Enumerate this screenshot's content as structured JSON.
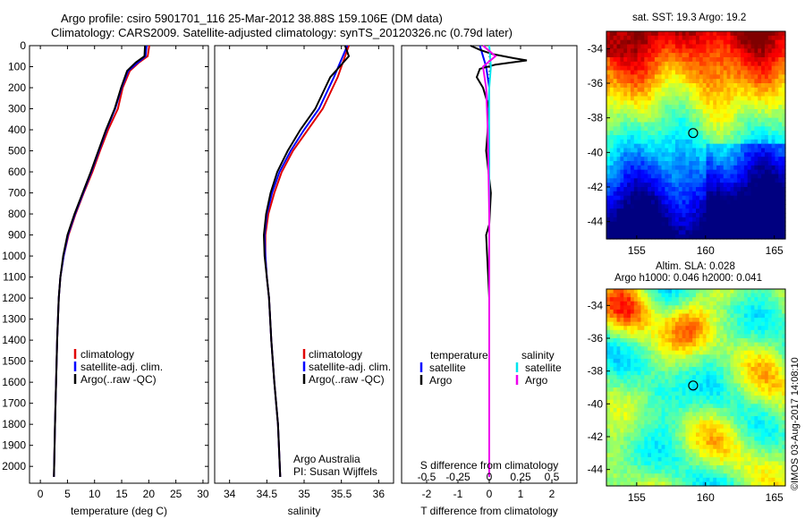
{
  "header": {
    "line1": "Argo profile: csiro 5901701_116 25-Mar-2012 38.88S 159.106E (DM data)",
    "line2": "Climatology: CARS2009. Satellite-adjusted climatology: synTS_20120326.nc (0.79d later)"
  },
  "right_panels": {
    "sst_title": "sat. SST: 19.3 Argo: 19.2",
    "sla_title1": "Altim. SLA: 0.028",
    "sla_title2": "Argo h1000: 0.046 h2000: 0.041",
    "watermark": "©IMOS 03-Aug-2017 14:08:10"
  },
  "colors": {
    "climatology": "#e00000",
    "satellite": "#0000ff",
    "argo": "#000000",
    "salinity_sat": "#00e5ee",
    "salinity_argo": "#ee00ee"
  },
  "chart_data": [
    {
      "type": "line",
      "name": "temperature",
      "xlabel": "temperature (deg C)",
      "ylabel": "",
      "xlim": [
        -2,
        31
      ],
      "ylim": [
        2080,
        0
      ],
      "xticks": [
        0,
        5,
        10,
        15,
        20,
        25,
        30
      ],
      "yticks": [
        0,
        100,
        200,
        300,
        400,
        500,
        600,
        700,
        800,
        900,
        1000,
        1100,
        1200,
        1300,
        1400,
        1500,
        1600,
        1700,
        1800,
        1900,
        2000
      ],
      "legend": [
        "climatology",
        "satellite-adj. clim.",
        "Argo(..raw -QC)"
      ],
      "series": [
        {
          "name": "climatology",
          "x": [
            20.1,
            19.8,
            18.2,
            16.5,
            15.2,
            14.3,
            12.5,
            11.0,
            9.6,
            8.0,
            6.5,
            5.2,
            4.3,
            3.7,
            3.4,
            3.1,
            2.9,
            2.7,
            2.5
          ],
          "y": [
            0,
            50,
            80,
            120,
            200,
            300,
            400,
            500,
            600,
            700,
            800,
            900,
            1000,
            1100,
            1200,
            1400,
            1600,
            1800,
            2050
          ]
        },
        {
          "name": "satellite-adj. clim.",
          "x": [
            19.6,
            19.4,
            18.0,
            16.2,
            15.0,
            13.8,
            12.2,
            10.8,
            9.4,
            7.9,
            6.4,
            5.1,
            4.3,
            3.7,
            3.4,
            3.1,
            2.9,
            2.7,
            2.5
          ],
          "y": [
            0,
            50,
            80,
            120,
            200,
            300,
            400,
            500,
            600,
            700,
            800,
            900,
            1000,
            1100,
            1200,
            1400,
            1600,
            1800,
            2050
          ]
        },
        {
          "name": "Argo(..raw -QC)",
          "x": [
            19.3,
            19.2,
            17.6,
            16.0,
            14.9,
            13.7,
            12.1,
            10.7,
            9.3,
            7.8,
            6.3,
            5.0,
            4.2,
            3.7,
            3.4,
            3.1,
            2.9,
            2.7,
            2.5
          ],
          "y": [
            0,
            50,
            80,
            120,
            200,
            300,
            400,
            500,
            600,
            700,
            800,
            900,
            1000,
            1100,
            1200,
            1400,
            1600,
            1800,
            2050
          ]
        }
      ]
    },
    {
      "type": "line",
      "name": "salinity",
      "xlabel": "salinity",
      "ylabel": "",
      "xlim": [
        33.8,
        36.2
      ],
      "ylim": [
        2080,
        0
      ],
      "xticks": [
        34,
        34.5,
        35,
        35.5,
        36
      ],
      "legend": [
        "climatology",
        "satellite-adj. clim.",
        "Argo(..raw -QC)"
      ],
      "annotation": [
        "Argo Australia",
        "PI: Susan Wijffels"
      ],
      "series": [
        {
          "name": "climatology",
          "x": [
            35.6,
            35.55,
            35.45,
            35.25,
            35.05,
            34.85,
            34.7,
            34.6,
            34.52,
            34.48,
            34.48,
            34.5,
            34.53,
            34.56,
            34.6,
            34.65,
            34.68
          ],
          "y": [
            0,
            50,
            150,
            300,
            400,
            500,
            600,
            700,
            800,
            900,
            1000,
            1100,
            1200,
            1400,
            1600,
            1800,
            2050
          ]
        },
        {
          "name": "satellite-adj. clim.",
          "x": [
            35.58,
            35.52,
            35.4,
            35.2,
            35.0,
            34.82,
            34.67,
            34.57,
            34.5,
            34.47,
            34.48,
            34.5,
            34.53,
            34.56,
            34.6,
            34.65,
            34.68
          ],
          "y": [
            0,
            50,
            150,
            300,
            400,
            500,
            600,
            700,
            800,
            900,
            1000,
            1100,
            1200,
            1400,
            1600,
            1800,
            2050
          ]
        },
        {
          "name": "Argo(..raw -QC)",
          "x": [
            35.55,
            35.6,
            35.35,
            35.15,
            34.95,
            34.78,
            34.64,
            34.55,
            34.49,
            34.46,
            34.47,
            34.5,
            34.53,
            34.56,
            34.6,
            34.65,
            34.68
          ],
          "y": [
            0,
            50,
            150,
            300,
            400,
            500,
            600,
            700,
            800,
            900,
            1000,
            1100,
            1200,
            1400,
            1600,
            1800,
            2050
          ]
        }
      ]
    },
    {
      "type": "line",
      "name": "difference",
      "xlabel": "T difference from climatology",
      "x2label": "S difference from climatology",
      "xlim": [
        -2.8,
        2.8
      ],
      "ylim": [
        2080,
        0
      ],
      "xticks": [
        -2,
        -1,
        0,
        1,
        2
      ],
      "xtick_labels_s": [
        "-0.5",
        "-0.25",
        "0",
        "0.25",
        "0.5"
      ],
      "legend_t_title": "temperature",
      "legend_s_title": "salinity",
      "legend": [
        "satellite",
        "Argo",
        "satellite",
        "Argo"
      ],
      "series": [
        {
          "name": "satellite",
          "x": [
            -0.3,
            -0.2,
            -0.1,
            0.0,
            -0.05,
            0.0,
            0.0,
            0.0,
            0.0,
            0.0
          ],
          "y": [
            0,
            50,
            100,
            200,
            400,
            600,
            900,
            1200,
            1600,
            2050
          ]
        },
        {
          "name": "Argo",
          "x": [
            -0.6,
            -0.3,
            0.1,
            0.8,
            1.2,
            0.2,
            -0.3,
            -0.4,
            -0.2,
            0.0,
            -0.1,
            0.05,
            0.0,
            -0.1,
            0.0,
            0.0,
            0.0
          ],
          "y": [
            0,
            20,
            40,
            60,
            70,
            90,
            110,
            150,
            200,
            300,
            500,
            700,
            850,
            900,
            1200,
            1600,
            2050
          ]
        },
        {
          "name": "satellite",
          "x": [
            0.0,
            0.05,
            0.0,
            0.0,
            0.0,
            0.0,
            0.0,
            0.0
          ],
          "y": [
            0,
            100,
            200,
            400,
            800,
            1200,
            1600,
            2050
          ]
        },
        {
          "name": "Argo",
          "x": [
            -0.2,
            0.2,
            -0.2,
            -0.1,
            -0.05,
            0.0,
            0.0,
            0.0,
            0.0
          ],
          "y": [
            0,
            50,
            100,
            200,
            400,
            800,
            1200,
            1600,
            2050
          ]
        }
      ]
    },
    {
      "type": "heatmap",
      "name": "sst_map",
      "title": "sat. SST: 19.3 Argo: 19.2",
      "xlim": [
        152.8,
        165.8
      ],
      "ylim": [
        -45,
        -33
      ],
      "xticks": [
        155,
        160,
        165
      ],
      "yticks": [
        -34,
        -36,
        -38,
        -40,
        -42,
        -44
      ],
      "marker": {
        "lon": 159.1,
        "lat": -38.88
      }
    },
    {
      "type": "heatmap",
      "name": "sla_map",
      "title": "Altim. SLA: 0.028",
      "xlim": [
        152.8,
        165.8
      ],
      "ylim": [
        -45,
        -33
      ],
      "xticks": [
        155,
        160,
        165
      ],
      "yticks": [
        -34,
        -36,
        -38,
        -40,
        -42,
        -44
      ],
      "marker": {
        "lon": 159.1,
        "lat": -38.88
      }
    }
  ]
}
